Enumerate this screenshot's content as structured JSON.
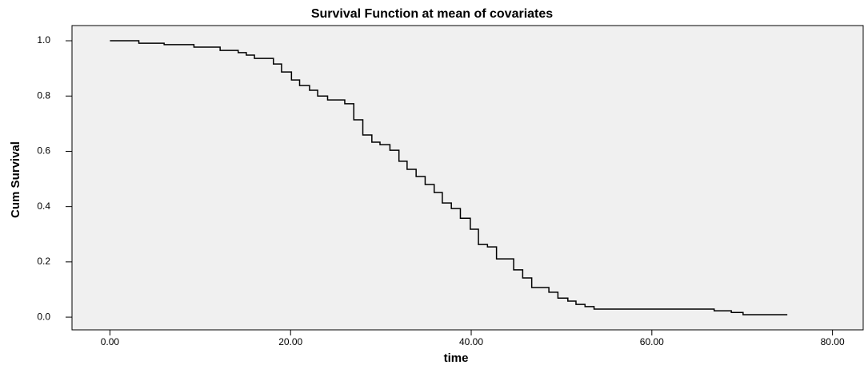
{
  "chart_data": {
    "type": "step",
    "title": "Survival Function at mean of covariates",
    "x_label": "time",
    "y_label": "Cum Survival",
    "x": [
      0,
      3.2,
      6.0,
      9.3,
      12.2,
      14.2,
      15.1,
      16.0,
      18.1,
      19.0,
      20.1,
      21.0,
      22.1,
      23.0,
      24.1,
      26.0,
      27.0,
      28.0,
      29.0,
      29.9,
      31.0,
      32.0,
      32.9,
      33.9,
      34.9,
      35.9,
      36.8,
      37.8,
      38.8,
      39.9,
      40.8,
      41.8,
      42.8,
      44.7,
      45.7,
      46.7,
      48.6,
      49.6,
      50.7,
      51.6,
      52.6,
      53.6,
      66.9,
      68.8,
      70.1,
      75.0
    ],
    "values": [
      1.0,
      0.991,
      0.986,
      0.977,
      0.965,
      0.957,
      0.948,
      0.936,
      0.916,
      0.887,
      0.858,
      0.838,
      0.821,
      0.8,
      0.786,
      0.772,
      0.714,
      0.659,
      0.633,
      0.624,
      0.604,
      0.564,
      0.535,
      0.509,
      0.48,
      0.451,
      0.413,
      0.393,
      0.358,
      0.318,
      0.263,
      0.254,
      0.211,
      0.171,
      0.142,
      0.107,
      0.09,
      0.069,
      0.058,
      0.046,
      0.038,
      0.029,
      0.023,
      0.017,
      0.009,
      0.009
    ],
    "color": "#000000",
    "xlim": [
      -4.2,
      83.4
    ],
    "ylim": [
      -0.046,
      1.055
    ],
    "xticks": [
      {
        "value": 0,
        "label": "0.00"
      },
      {
        "value": 20,
        "label": "20.00"
      },
      {
        "value": 40,
        "label": "40.00"
      },
      {
        "value": 60,
        "label": "60.00"
      },
      {
        "value": 80,
        "label": "80.00"
      }
    ],
    "yticks": [
      {
        "value": 0,
        "label": "0.0"
      },
      0.2,
      0.4,
      0.6,
      0.8,
      {
        "value": 1,
        "label": "1.0"
      }
    ],
    "grid": false
  }
}
